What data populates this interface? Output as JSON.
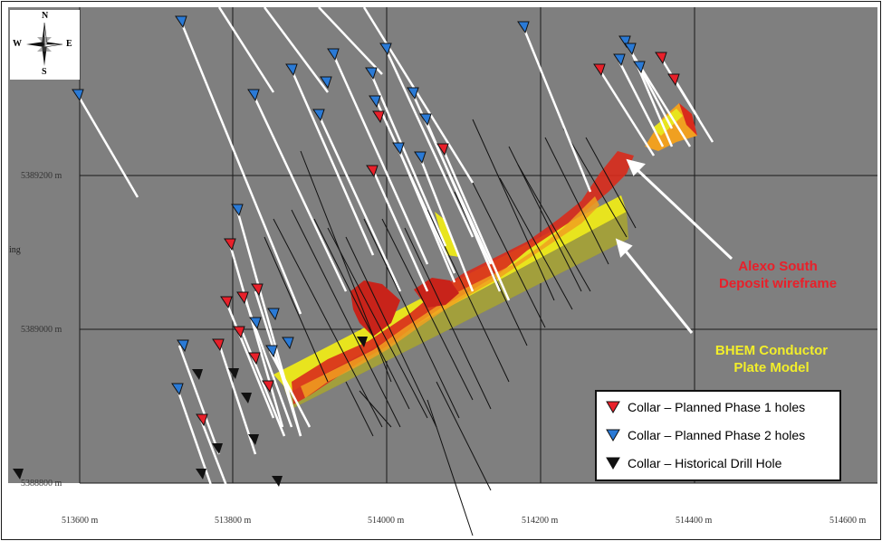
{
  "map": {
    "grid": {
      "x_ticks": [
        "513600 m",
        "513800 m",
        "514000 m",
        "514200 m",
        "514400 m",
        "514600 m"
      ],
      "y_ticks": [
        "5389200 m",
        "5389000 m",
        "5388800 m"
      ]
    },
    "compass": {
      "n": "N",
      "s": "S",
      "e": "E",
      "w": "W"
    },
    "edge_fragment": "ing",
    "callouts": {
      "deposit": {
        "line1": "Alexo South",
        "line2": "Deposit wireframe",
        "color": "#e8202a"
      },
      "conductor": {
        "line1": "BHEM  Conductor",
        "line2": "Plate Model",
        "color": "#f2ee2a"
      }
    },
    "legend": {
      "items": [
        {
          "label": "Collar – Planned Phase 1 holes",
          "color": "#e8202a"
        },
        {
          "label": "Collar – Planned Phase 2 holes",
          "color": "#2a7ad6"
        },
        {
          "label": "Collar – Historical Drill Hole",
          "color": "#111111"
        }
      ]
    },
    "colors": {
      "background": "#7f7f7f",
      "grid": "#1a1a1a",
      "planned_trace": "#ffffff",
      "historical_trace": "#111111"
    }
  }
}
